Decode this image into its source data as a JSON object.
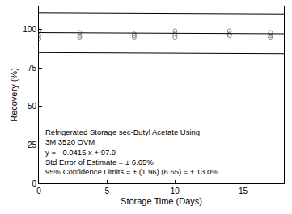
{
  "chart_data": {
    "type": "scatter",
    "x_label": "Storage Time (Days)",
    "y_label": "Recovery (%)",
    "annotations": [
      "Refrigerated Storage sec-Butyl Acetate Using",
      "3M 3520 OVM",
      "y = - 0.0415 x + 97.9",
      "Std Error of Estimate = ± 6.65%",
      "95% Confidence Limits = ± (1.96) (6.65) = ± 13.0%"
    ],
    "xlim": [
      0,
      18
    ],
    "xticks": [
      0,
      5,
      10,
      15
    ],
    "ylim": [
      0,
      115
    ],
    "yticks": [
      0,
      25,
      50,
      75,
      100
    ],
    "grid": false,
    "series": [
      {
        "type": "scatter",
        "marker": "open_circle",
        "color": "#888888",
        "x": [
          0,
          0,
          0,
          3,
          3,
          3,
          7,
          7,
          7,
          10,
          10,
          10,
          14,
          14,
          14,
          17,
          17,
          17
        ],
        "values": [
          99,
          96,
          94,
          98,
          96,
          95,
          97,
          96,
          95,
          99,
          97,
          95,
          99,
          97,
          96,
          98,
          96,
          95
        ]
      },
      {
        "type": "line",
        "line_style": "solid",
        "color": "#000000",
        "x": [
          0,
          18
        ],
        "values": [
          97.9,
          97.15
        ]
      },
      {
        "type": "line",
        "line_style": "solid",
        "color": "#000000",
        "x": [
          0,
          18
        ],
        "values": [
          110.9,
          110.15
        ]
      },
      {
        "type": "line",
        "line_style": "solid",
        "color": "#000000",
        "x": [
          0,
          18
        ],
        "values": [
          84.9,
          84.15
        ]
      }
    ]
  }
}
